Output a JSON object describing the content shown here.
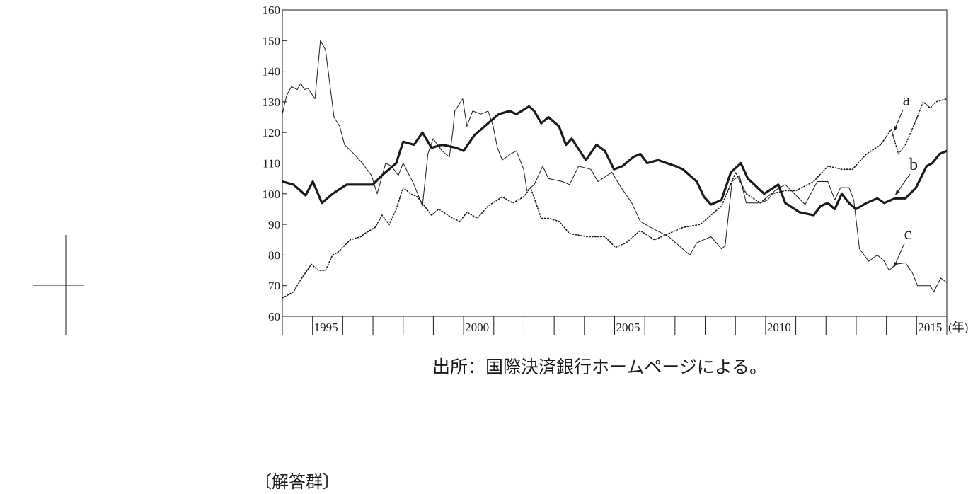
{
  "chart_data": {
    "type": "line",
    "x_unit": "(年)",
    "source": "出所：国際決済銀行ホームページによる。",
    "footer": "〔解答群〕",
    "xlim": [
      1994,
      2016
    ],
    "xticks": [
      1995,
      2000,
      2005,
      2010,
      2015
    ],
    "minor_xticks": [
      1994,
      1996,
      1997,
      1998,
      1999,
      2001,
      2002,
      2003,
      2004,
      2006,
      2007,
      2008,
      2009,
      2011,
      2012,
      2013,
      2014,
      2016
    ],
    "ylim": [
      60,
      160
    ],
    "yticks": [
      60,
      70,
      80,
      90,
      100,
      110,
      120,
      130,
      140,
      150,
      160
    ],
    "grid": false,
    "series": [
      {
        "name": "a",
        "color": "#1a1a1a",
        "line_style": "dotted",
        "x": [
          1994,
          1994.37,
          1994.61,
          1994.96,
          1995.19,
          1995.43,
          1995.66,
          1995.85,
          1996.25,
          1996.6,
          1996.72,
          1997.07,
          1997.3,
          1997.54,
          1997.77,
          1998.0,
          1998.24,
          1998.47,
          1998.94,
          1999.18,
          1999.64,
          1999.88,
          2000.11,
          2000.46,
          2000.81,
          2001.28,
          2001.63,
          2001.99,
          2002.22,
          2002.57,
          2002.81,
          2003.16,
          2003.51,
          2004.09,
          2004.68,
          2005.03,
          2005.38,
          2005.85,
          2006.32,
          2006.79,
          2007.26,
          2007.84,
          2008.19,
          2008.54,
          2009.01,
          2009.36,
          2009.83,
          2010.18,
          2010.65,
          2011.0,
          2011.59,
          2012.06,
          2012.52,
          2012.88,
          2013.34,
          2013.81,
          2014.16,
          2014.4,
          2014.63,
          2014.98,
          2015.22,
          2015.45,
          2015.64,
          2016
        ],
        "values": [
          66,
          68,
          72,
          77,
          75,
          75,
          80,
          81,
          85,
          86,
          87,
          89,
          93,
          90,
          95,
          102,
          100,
          99,
          93,
          95,
          92,
          91,
          94,
          92,
          96,
          99,
          97,
          99,
          102,
          92,
          92,
          91,
          87,
          86,
          86,
          82.5,
          84,
          88,
          85,
          87,
          89,
          90,
          93,
          96,
          107,
          100,
          97,
          100,
          101,
          101,
          104,
          109,
          108,
          108,
          113,
          116,
          121,
          113,
          116,
          124,
          130,
          128,
          130,
          131
        ]
      },
      {
        "name": "b",
        "color": "#1a1a1a",
        "line_style": "thick",
        "x": [
          1994,
          1994.37,
          1994.77,
          1995.01,
          1995.31,
          1995.66,
          1996.13,
          1997.0,
          1997.3,
          1997.77,
          1998.0,
          1998.36,
          1998.64,
          1998.94,
          1999.29,
          1999.76,
          2000.0,
          2000.35,
          2000.81,
          2001.17,
          2001.52,
          2001.75,
          2002.17,
          2002.34,
          2002.57,
          2002.81,
          2003.16,
          2003.39,
          2003.58,
          2004.05,
          2004.4,
          2004.68,
          2004.98,
          2005.26,
          2005.62,
          2005.85,
          2006.08,
          2006.44,
          2007.02,
          2007.26,
          2007.72,
          2007.96,
          2008.19,
          2008.54,
          2008.85,
          2009.18,
          2009.41,
          2009.95,
          2010.42,
          2010.65,
          2011.12,
          2011.59,
          2011.82,
          2012.06,
          2012.29,
          2012.52,
          2012.76,
          2012.99,
          2013.34,
          2013.7,
          2013.93,
          2014.28,
          2014.63,
          2014.98,
          2015.33,
          2015.52,
          2015.76,
          2016
        ],
        "values": [
          104,
          103,
          99.5,
          104,
          97,
          100,
          103,
          103,
          106,
          110,
          117,
          116,
          120,
          115,
          116,
          115,
          114,
          119,
          123,
          126,
          127,
          126,
          128.5,
          127,
          123,
          125,
          122,
          116,
          118,
          111,
          116,
          114,
          108,
          109,
          112,
          113,
          110,
          111,
          109,
          108,
          104,
          99,
          96.5,
          98,
          107,
          110,
          105,
          100,
          103,
          97,
          94,
          93,
          96,
          97,
          95,
          100,
          97,
          95,
          97,
          98.5,
          97,
          98.5,
          98.5,
          102,
          109,
          110,
          113,
          114
        ]
      },
      {
        "name": "c",
        "color": "#1a1a1a",
        "line_style": "thin",
        "x": [
          1994,
          1994.14,
          1994.3,
          1994.49,
          1994.61,
          1994.73,
          1994.84,
          1995.08,
          1995.26,
          1995.43,
          1995.71,
          1995.9,
          1996.06,
          1996.37,
          1996.65,
          1996.95,
          1997.14,
          1997.42,
          1997.61,
          1997.84,
          1998.0,
          1998.36,
          1998.64,
          1998.82,
          1998.99,
          1999.29,
          1999.53,
          1999.64,
          1999.71,
          1999.97,
          2000.11,
          2000.3,
          2000.58,
          2000.81,
          2000.98,
          2001.12,
          2001.28,
          2001.56,
          2001.75,
          2001.99,
          2002.1,
          2002.34,
          2002.62,
          2002.81,
          2003.27,
          2003.51,
          2003.81,
          2004.21,
          2004.45,
          2004.91,
          2005.22,
          2005.57,
          2005.85,
          2006.2,
          2006.79,
          2007.14,
          2007.49,
          2007.72,
          2008.19,
          2008.54,
          2008.66,
          2008.89,
          2009.13,
          2009.36,
          2009.83,
          2010.07,
          2010.3,
          2010.65,
          2011.31,
          2011.71,
          2012.06,
          2012.29,
          2012.48,
          2012.76,
          2012.92,
          2013.11,
          2013.41,
          2013.7,
          2013.93,
          2014.09,
          2014.3,
          2014.63,
          2014.87,
          2015.03,
          2015.45,
          2015.57,
          2015.8,
          2016
        ],
        "values": [
          126,
          132,
          135,
          134,
          136,
          134,
          134.5,
          131,
          150,
          147,
          125,
          122,
          116,
          113,
          110,
          106,
          100,
          110,
          109,
          106,
          110,
          103,
          96,
          113,
          118,
          114,
          112,
          120,
          127,
          131,
          122,
          127,
          126,
          127,
          122,
          115,
          111,
          113,
          114,
          108,
          101,
          103,
          109,
          105,
          104,
          103,
          109,
          108,
          104,
          107,
          102,
          97,
          91,
          89,
          86,
          83,
          80,
          84,
          86,
          82,
          83,
          104,
          106,
          97,
          97,
          98,
          101,
          103,
          96.5,
          104,
          104,
          98,
          102,
          102,
          98,
          82,
          78,
          80,
          78,
          75,
          77,
          77.5,
          74,
          70,
          70,
          68,
          72.5,
          71
        ]
      }
    ]
  }
}
